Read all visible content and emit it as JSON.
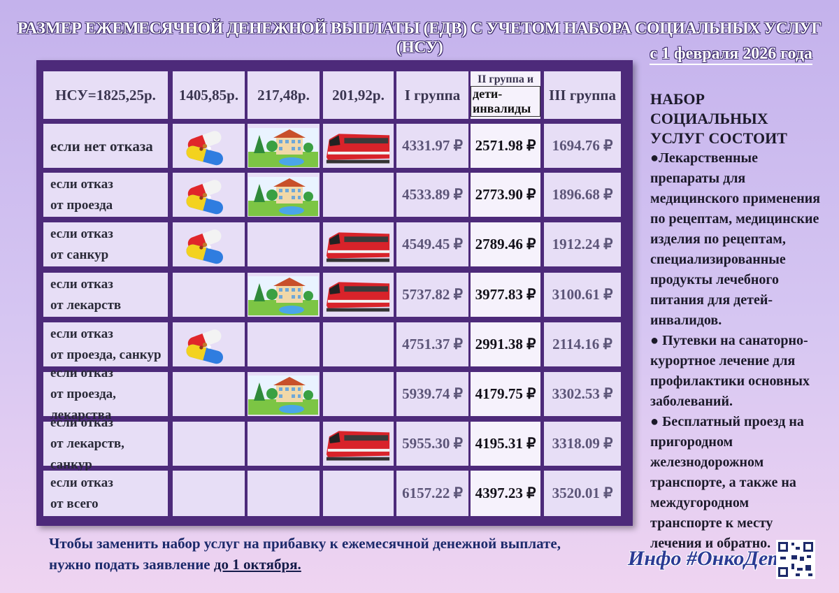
{
  "header": {
    "title": "РАЗМЕР ЕЖЕМЕСЯЧНОЙ ДЕНЕЖНОЙ ВЫПЛАТЫ (ЕДВ) С УЧЕТОМ НАБОРА СОЦИАЛЬНЫХ УСЛУГ (НСУ)",
    "subtitle": "с 1 февраля 2026 года"
  },
  "table": {
    "header": [
      "НСУ=1825,25р.",
      "1405,85р.",
      "217,48р.",
      "201,92р.",
      "I группа",
      [
        "II группа и",
        "дети-инвалиды"
      ],
      "III группа"
    ],
    "rows": [
      {
        "label": [
          "если нет отказа"
        ],
        "values": [
          "4331.97 ₽",
          "2571.98 ₽",
          "1694.76 ₽"
        ]
      },
      {
        "label": [
          "если отказ",
          "от проезда"
        ],
        "values": [
          "4533.89 ₽",
          "2773.90 ₽",
          "1896.68 ₽"
        ]
      },
      {
        "label": [
          "если отказ",
          "от санкур"
        ],
        "values": [
          "4549.45 ₽",
          "2789.46 ₽",
          "1912.24 ₽"
        ]
      },
      {
        "label": [
          "если отказ",
          "от лекарств"
        ],
        "values": [
          "5737.82 ₽",
          "3977.83 ₽",
          "3100.61 ₽"
        ]
      },
      {
        "label": [
          "если отказ",
          "от проезда, санкур"
        ],
        "values": [
          "4751.37 ₽",
          "2991.38 ₽",
          "2114.16 ₽"
        ]
      },
      {
        "label": [
          "если отказ",
          "от проезда, лекарства"
        ],
        "values": [
          "5939.74 ₽",
          "4179.75 ₽",
          "3302.53 ₽"
        ]
      },
      {
        "label": [
          "если отказ",
          "от лекарств, санкур"
        ],
        "values": [
          "5955.30 ₽",
          "4195.31 ₽",
          "3318.09 ₽"
        ]
      },
      {
        "label": [
          "если отказ",
          "от всего"
        ],
        "values": [
          "6157.22 ₽",
          "4397.23 ₽",
          "3520.01 ₽"
        ]
      }
    ]
  },
  "side": {
    "title": "НАБОР СОЦИАЛЬНЫХ УСЛУГ СОСТОИТ",
    "items": [
      "●Лекарственные препараты для медицинского применения по рецептам, медицинские изделия по рецептам, специализированные продукты лечебного питания для детей-инвалидов.",
      "● Путевки на санаторно-курортное лечение для профилактики основных заболеваний.",
      "● Бесплатный проезд на пригородном железнодорожном транспорте, а также на междугородном транспорте к месту лечения и обратно."
    ]
  },
  "footer": {
    "note": "Чтобы заменить набор услуг на прибавку к ежемесячной денежной выплате, нужно подать заявление",
    "deadline": "до 1 октября.",
    "brand": "Инфо #ОнкоДетки"
  }
}
